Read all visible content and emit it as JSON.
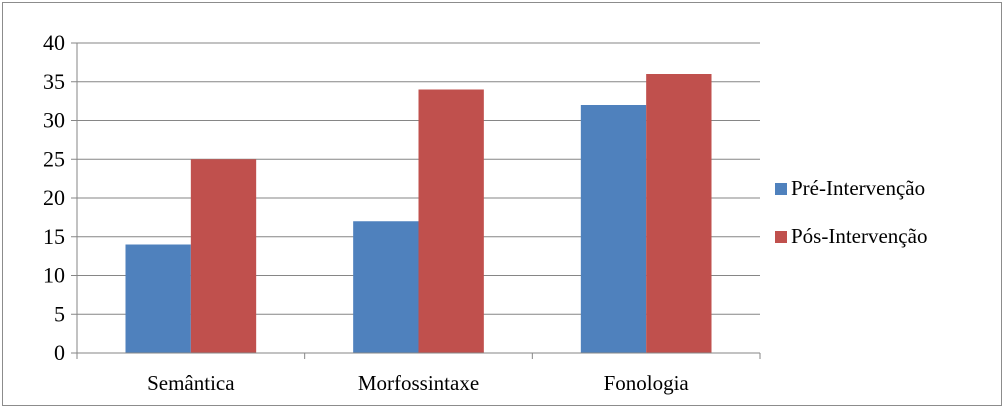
{
  "chart_data": {
    "type": "bar",
    "categories": [
      "Semântica",
      "Morfossintaxe",
      "Fonologia"
    ],
    "series": [
      {
        "name": "Pré-Intervenção",
        "values": [
          14,
          17,
          32
        ],
        "color": "#4f81bd"
      },
      {
        "name": "Pós-Intervenção",
        "values": [
          25,
          34,
          36
        ],
        "color": "#c0504d"
      }
    ],
    "ylim": [
      0,
      40
    ],
    "yticks": [
      0,
      5,
      10,
      15,
      20,
      25,
      30,
      35,
      40
    ],
    "grid": true,
    "legend": "right",
    "title": "",
    "xlabel": "",
    "ylabel": ""
  }
}
